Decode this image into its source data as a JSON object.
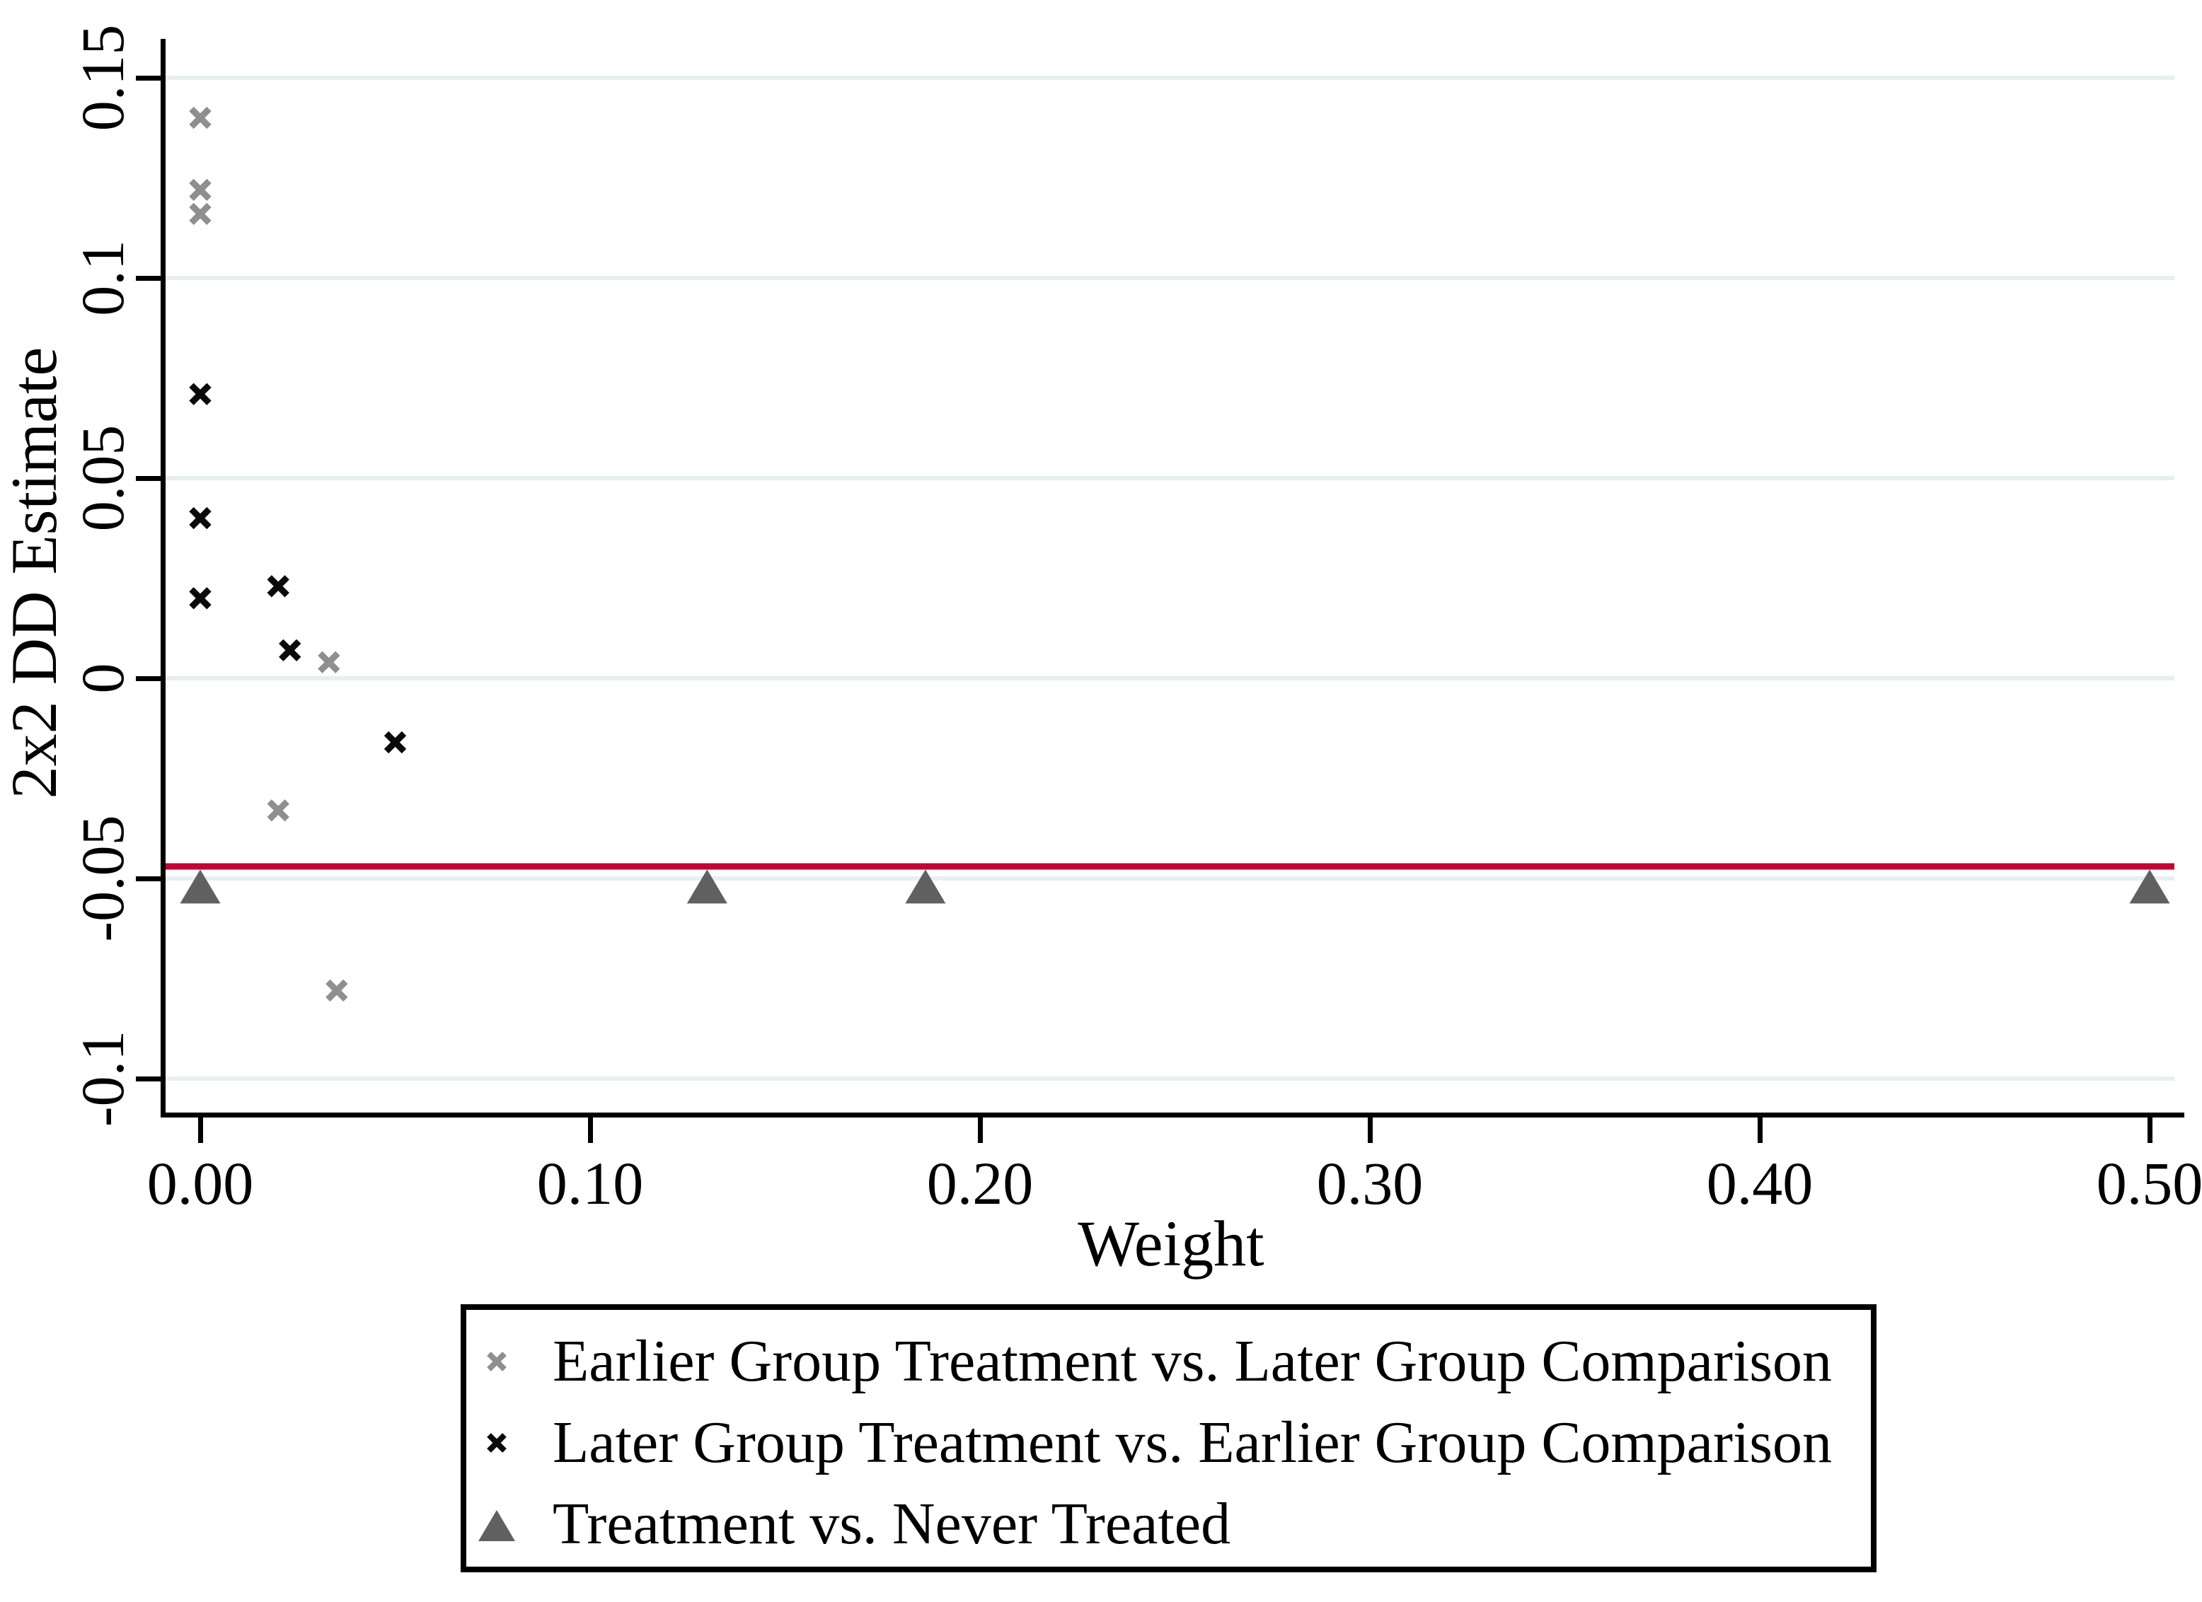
{
  "chart_data": {
    "type": "scatter",
    "xlabel": "Weight",
    "ylabel": "2x2 DD Estimate",
    "xlim": [
      -0.0095,
      0.5065
    ],
    "ylim": [
      -0.1095,
      0.1595
    ],
    "grid": "horizontal",
    "legend_position": "below-plot",
    "x_ticks": {
      "values": [
        0.0,
        0.1,
        0.2,
        0.3,
        0.4,
        0.5
      ],
      "labels": [
        "0.00",
        "0.10",
        "0.20",
        "0.30",
        "0.40",
        "0.50"
      ]
    },
    "y_ticks": {
      "values": [
        0.15,
        0.1,
        0.05,
        0,
        -0.05,
        -0.1
      ],
      "labels": [
        "0.15",
        "0.1",
        "0.05",
        "0",
        "-0.05",
        "-0.1"
      ]
    },
    "series": [
      {
        "name": "Earlier Group Treatment vs. Later Group Comparison",
        "marker": "x",
        "color": "#8f8f8f",
        "points": [
          [
            0.0,
            0.14
          ],
          [
            0.0,
            0.122
          ],
          [
            0.0,
            0.116
          ],
          [
            0.033,
            0.004
          ],
          [
            0.02,
            -0.033
          ],
          [
            0.035,
            -0.078
          ]
        ]
      },
      {
        "name": "Later Group Treatment vs. Earlier Group Comparison",
        "marker": "x",
        "color": "#0a0a0a",
        "points": [
          [
            0.0,
            0.071
          ],
          [
            0.0,
            0.04
          ],
          [
            0.0,
            0.02
          ],
          [
            0.02,
            0.023
          ],
          [
            0.023,
            0.007
          ],
          [
            0.05,
            -0.016
          ]
        ]
      },
      {
        "name": "Treatment vs. Never Treated",
        "marker": "triangle",
        "color": "#606060",
        "points": [
          [
            0.0,
            -0.052
          ],
          [
            0.13,
            -0.052
          ],
          [
            0.186,
            -0.052
          ],
          [
            0.5,
            -0.052
          ]
        ]
      }
    ],
    "reference_line": {
      "orientation": "horizontal",
      "value": -0.047,
      "color": "#c10534"
    },
    "style": {
      "background": "#ffffff",
      "axis_color": "#000000",
      "gridline_color": "#e6eff1",
      "text_color": "#000000"
    }
  }
}
